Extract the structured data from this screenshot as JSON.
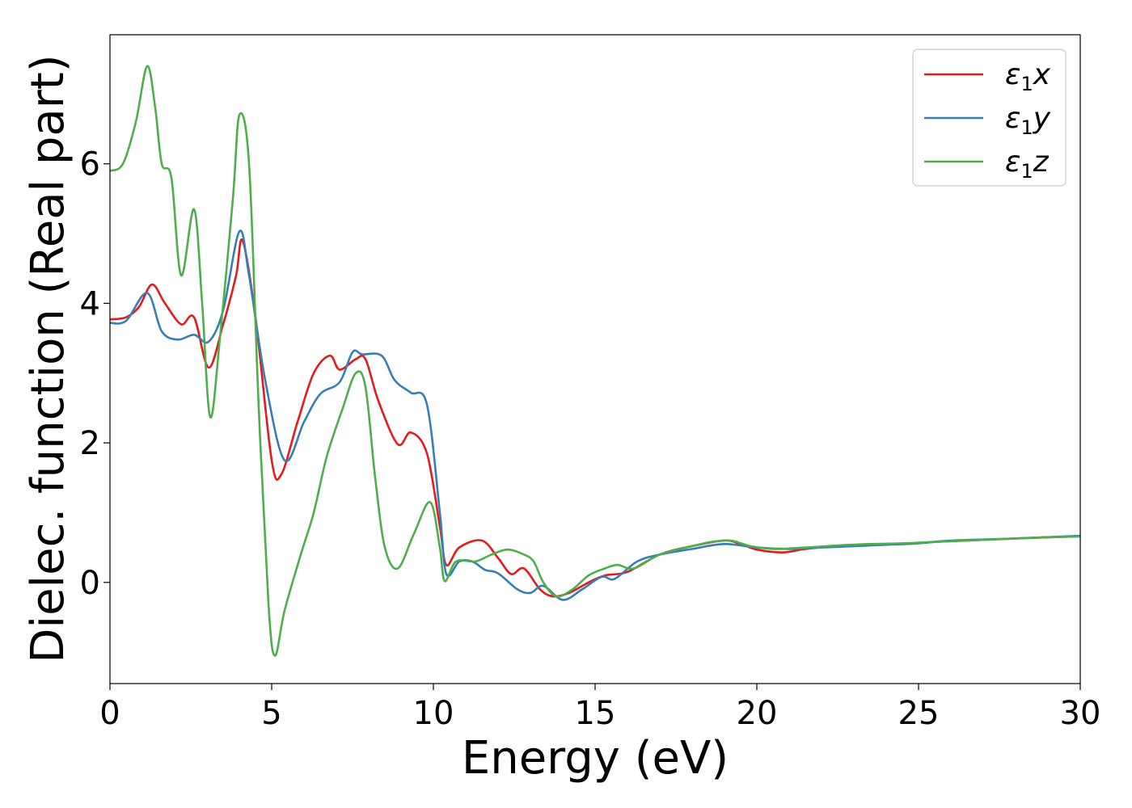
{
  "chart_data": {
    "type": "line",
    "title": "",
    "xlabel": "Energy (eV)",
    "ylabel": "Dielec. function (Real part)",
    "xlim": [
      0,
      30
    ],
    "ylim": [
      -1.45,
      7.85
    ],
    "xticks": [
      0,
      5,
      10,
      15,
      20,
      25,
      30
    ],
    "yticks": [
      0,
      2,
      4,
      6
    ],
    "grid": false,
    "legend": {
      "position": "top-right"
    },
    "series": [
      {
        "name": "ε1x",
        "label_base": "ε",
        "label_sub": "1",
        "label_var": "x",
        "color": "#e41a1c",
        "points": [
          [
            0,
            3.77
          ],
          [
            0.5,
            3.8
          ],
          [
            0.9,
            3.95
          ],
          [
            1.3,
            4.27
          ],
          [
            1.7,
            4.0
          ],
          [
            2.2,
            3.7
          ],
          [
            2.6,
            3.8
          ],
          [
            3.05,
            3.08
          ],
          [
            3.5,
            3.7
          ],
          [
            3.9,
            4.4
          ],
          [
            4.1,
            4.9
          ],
          [
            4.5,
            3.8
          ],
          [
            5.0,
            1.75
          ],
          [
            5.3,
            1.55
          ],
          [
            5.8,
            2.3
          ],
          [
            6.3,
            3.0
          ],
          [
            6.8,
            3.25
          ],
          [
            7.1,
            3.05
          ],
          [
            7.6,
            3.2
          ],
          [
            7.9,
            3.2
          ],
          [
            8.3,
            2.6
          ],
          [
            8.9,
            1.98
          ],
          [
            9.3,
            2.15
          ],
          [
            9.8,
            1.85
          ],
          [
            10.2,
            0.8
          ],
          [
            10.4,
            0.25
          ],
          [
            10.8,
            0.5
          ],
          [
            11.5,
            0.6
          ],
          [
            12.0,
            0.35
          ],
          [
            12.4,
            0.12
          ],
          [
            12.8,
            0.2
          ],
          [
            13.3,
            -0.1
          ],
          [
            13.7,
            -0.2
          ],
          [
            14.2,
            -0.15
          ],
          [
            14.8,
            0.0
          ],
          [
            15.3,
            0.1
          ],
          [
            16.0,
            0.15
          ],
          [
            17.0,
            0.4
          ],
          [
            18.0,
            0.52
          ],
          [
            19.0,
            0.6
          ],
          [
            19.5,
            0.55
          ],
          [
            20.0,
            0.47
          ],
          [
            20.8,
            0.43
          ],
          [
            21.5,
            0.48
          ],
          [
            22.5,
            0.52
          ],
          [
            23.5,
            0.54
          ],
          [
            24.5,
            0.55
          ],
          [
            25.5,
            0.58
          ],
          [
            26.5,
            0.6
          ],
          [
            28.0,
            0.63
          ],
          [
            30.0,
            0.66
          ]
        ]
      },
      {
        "name": "ε1y",
        "label_base": "ε",
        "label_sub": "1",
        "label_var": "y",
        "color": "#377eb8",
        "points": [
          [
            0,
            3.72
          ],
          [
            0.5,
            3.75
          ],
          [
            1.15,
            4.15
          ],
          [
            1.6,
            3.6
          ],
          [
            2.1,
            3.48
          ],
          [
            2.6,
            3.55
          ],
          [
            3.05,
            3.45
          ],
          [
            3.5,
            3.9
          ],
          [
            4.0,
            5.03
          ],
          [
            4.3,
            4.4
          ],
          [
            4.8,
            2.9
          ],
          [
            5.4,
            1.75
          ],
          [
            6.0,
            2.3
          ],
          [
            6.5,
            2.7
          ],
          [
            7.1,
            2.87
          ],
          [
            7.5,
            3.3
          ],
          [
            7.8,
            3.27
          ],
          [
            8.4,
            3.25
          ],
          [
            8.8,
            2.9
          ],
          [
            9.3,
            2.72
          ],
          [
            9.8,
            2.55
          ],
          [
            10.2,
            1.0
          ],
          [
            10.4,
            0.12
          ],
          [
            10.8,
            0.3
          ],
          [
            11.2,
            0.3
          ],
          [
            11.6,
            0.18
          ],
          [
            12.0,
            0.13
          ],
          [
            12.6,
            -0.1
          ],
          [
            13.0,
            -0.15
          ],
          [
            13.4,
            -0.05
          ],
          [
            14.0,
            -0.25
          ],
          [
            14.6,
            -0.1
          ],
          [
            15.2,
            0.08
          ],
          [
            15.6,
            0.05
          ],
          [
            16.3,
            0.3
          ],
          [
            17.0,
            0.4
          ],
          [
            18.0,
            0.48
          ],
          [
            19.0,
            0.55
          ],
          [
            20.0,
            0.5
          ],
          [
            21.0,
            0.48
          ],
          [
            22.0,
            0.5
          ],
          [
            23.0,
            0.52
          ],
          [
            24.0,
            0.54
          ],
          [
            25.0,
            0.56
          ],
          [
            26.0,
            0.6
          ],
          [
            28.0,
            0.63
          ],
          [
            30.0,
            0.67
          ]
        ]
      },
      {
        "name": "ε1z",
        "label_base": "ε",
        "label_sub": "1",
        "label_var": "z",
        "color": "#4daf4a",
        "points": [
          [
            0,
            5.9
          ],
          [
            0.4,
            6.0
          ],
          [
            0.8,
            6.6
          ],
          [
            1.15,
            7.4
          ],
          [
            1.4,
            6.8
          ],
          [
            1.6,
            6.0
          ],
          [
            1.9,
            5.8
          ],
          [
            2.2,
            4.4
          ],
          [
            2.6,
            5.35
          ],
          [
            2.85,
            4.0
          ],
          [
            3.1,
            2.37
          ],
          [
            3.4,
            3.5
          ],
          [
            3.8,
            5.5
          ],
          [
            4.0,
            6.7
          ],
          [
            4.3,
            6.0
          ],
          [
            4.6,
            2.5
          ],
          [
            4.9,
            -0.3
          ],
          [
            5.1,
            -1.05
          ],
          [
            5.4,
            -0.4
          ],
          [
            5.9,
            0.4
          ],
          [
            6.3,
            1.0
          ],
          [
            6.7,
            1.8
          ],
          [
            7.2,
            2.5
          ],
          [
            7.6,
            3.0
          ],
          [
            7.9,
            2.8
          ],
          [
            8.2,
            1.5
          ],
          [
            8.5,
            0.5
          ],
          [
            8.9,
            0.2
          ],
          [
            9.4,
            0.7
          ],
          [
            9.9,
            1.15
          ],
          [
            10.2,
            0.5
          ],
          [
            10.35,
            0.02
          ],
          [
            10.7,
            0.3
          ],
          [
            11.3,
            0.3
          ],
          [
            11.8,
            0.4
          ],
          [
            12.3,
            0.47
          ],
          [
            12.8,
            0.4
          ],
          [
            13.1,
            0.3
          ],
          [
            13.4,
            0.0
          ],
          [
            13.8,
            -0.2
          ],
          [
            14.3,
            -0.1
          ],
          [
            14.8,
            0.1
          ],
          [
            15.3,
            0.2
          ],
          [
            15.7,
            0.25
          ],
          [
            16.2,
            0.2
          ],
          [
            17.0,
            0.4
          ],
          [
            18.0,
            0.52
          ],
          [
            18.6,
            0.58
          ],
          [
            19.2,
            0.6
          ],
          [
            19.8,
            0.52
          ],
          [
            20.5,
            0.48
          ],
          [
            21.5,
            0.5
          ],
          [
            22.5,
            0.53
          ],
          [
            23.5,
            0.55
          ],
          [
            24.5,
            0.56
          ],
          [
            25.5,
            0.58
          ],
          [
            27.0,
            0.61
          ],
          [
            28.5,
            0.64
          ],
          [
            30.0,
            0.66
          ]
        ]
      }
    ]
  }
}
